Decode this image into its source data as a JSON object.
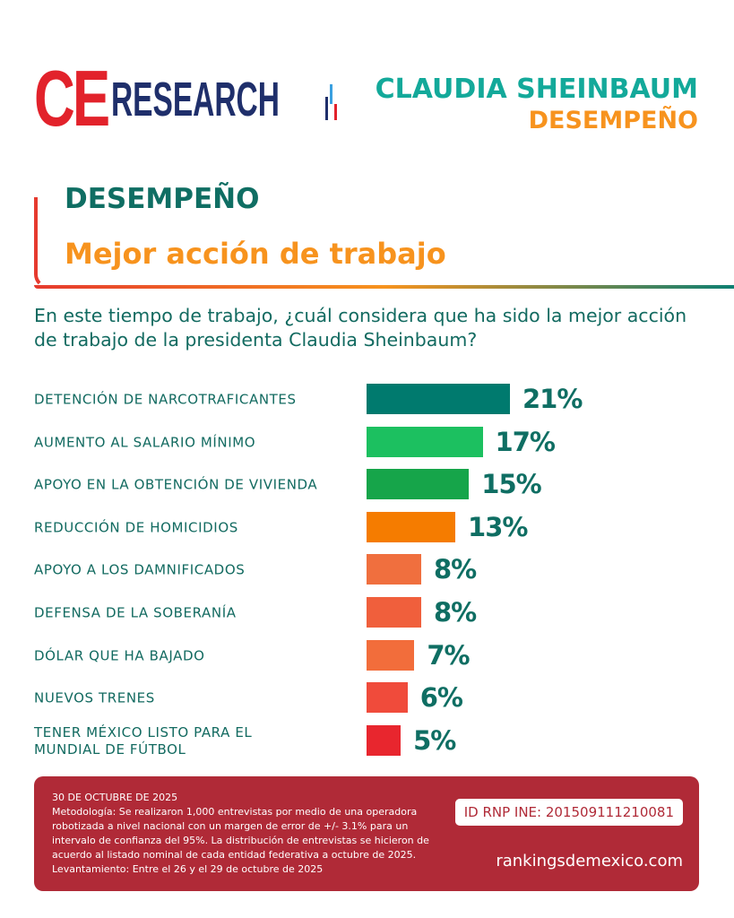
{
  "brand": {
    "logo_ce": "CE",
    "logo_research": "RESEARCH",
    "logo_colors": {
      "ce": "#e2222b",
      "research": "#1f2f6b",
      "bar_accent": "#3aa0e0"
    }
  },
  "header": {
    "name": "CLAUDIA SHEINBAUM",
    "topic": "DESEMPEÑO"
  },
  "section": {
    "title": "DESEMPEÑO",
    "subtitle": "Mejor acción de trabajo"
  },
  "question": "En este tiempo de trabajo, ¿cuál considera que ha sido la mejor acción de trabajo de la presidenta Claudia Sheinbaum?",
  "chart_data": {
    "type": "bar",
    "orientation": "horizontal",
    "xlim": [
      0,
      21
    ],
    "categories": [
      "DETENCIÓN DE NARCOTRAFICANTES",
      "AUMENTO AL SALARIO MÍNIMO",
      "APOYO EN LA OBTENCIÓN DE VIVIENDA",
      "REDUCCIÓN DE HOMICIDIOS",
      "APOYO A LOS DAMNIFICADOS",
      "DEFENSA DE LA SOBERANÍA",
      "DÓLAR QUE HA BAJADO",
      "NUEVOS TRENES",
      "TENER MÉXICO LISTO PARA EL MUNDIAL DE FÚTBOL"
    ],
    "values": [
      21,
      17,
      15,
      13,
      8,
      8,
      7,
      6,
      5
    ],
    "labels": [
      "21%",
      "17%",
      "15%",
      "13%",
      "8%",
      "8%",
      "7%",
      "6%",
      "5%"
    ],
    "colors": [
      "#007a6e",
      "#1cc060",
      "#16a54a",
      "#f57c00",
      "#f06f3e",
      "#f05f3c",
      "#f26d3b",
      "#f04b3b",
      "#e8262e"
    ]
  },
  "footer": {
    "date": "30 DE OCTUBRE DE 2025",
    "methodology": "Metodología: Se realizaron 1,000 entrevistas por medio de una operadora robotizada a nivel nacional con un margen de error de +/- 3.1% para un intervalo de confianza del 95%. La distribución de entrevistas se hicieron de acuerdo al listado nominal de cada entidad federativa a octubre de 2025.",
    "fieldwork": "Levantamiento: Entre el 26 y el 29 de octubre de 2025",
    "id": "ID RNP INE: 201509111210081",
    "url": "rankingsdemexico.com"
  }
}
